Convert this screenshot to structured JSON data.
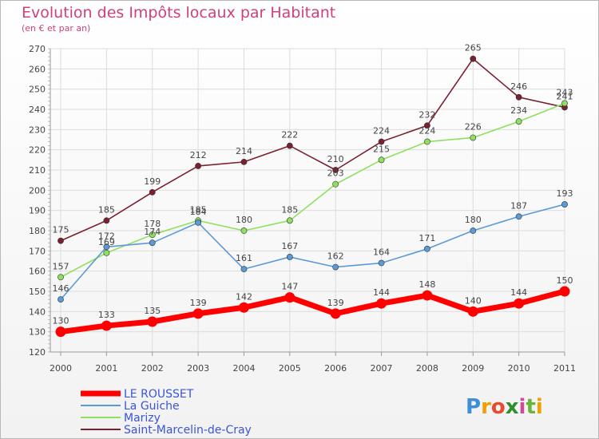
{
  "header": {
    "title": "Evolution des Impôts locaux par Habitant",
    "subtitle": "(en € et par an)"
  },
  "logo": {
    "text": "Proxiti",
    "letters": [
      "P",
      "r",
      "o",
      "x",
      "i",
      "t",
      "i"
    ],
    "colors": [
      "#3d8fd6",
      "#f0a000",
      "#e84b2f",
      "#2f8f2f",
      "#d04a9a",
      "#6bb43a",
      "#f0a000"
    ]
  },
  "chart_data": {
    "type": "line",
    "title": "Evolution des Impôts locaux par Habitant",
    "subtitle": "(en € et par an)",
    "xlabel": "",
    "ylabel": "",
    "ylim": [
      120,
      270
    ],
    "y_ticks": [
      120,
      130,
      140,
      150,
      160,
      170,
      180,
      190,
      200,
      210,
      220,
      230,
      240,
      250,
      260,
      270
    ],
    "x": [
      "2000",
      "2001",
      "2002",
      "2003",
      "2004",
      "2005",
      "2006",
      "2007",
      "2008",
      "2009",
      "2010",
      "2011"
    ],
    "series": [
      {
        "name": "LE ROUSSET",
        "color": "#ff0000",
        "values": [
          130,
          133,
          135,
          139,
          142,
          147,
          139,
          144,
          148,
          140,
          144,
          150
        ]
      },
      {
        "name": "La Guiche",
        "color": "#5b9bd5",
        "values": [
          146,
          172,
          174,
          184,
          161,
          167,
          162,
          164,
          171,
          180,
          187,
          193
        ]
      },
      {
        "name": "Marizy",
        "color": "#8fe060",
        "values": [
          157,
          169,
          178,
          185,
          180,
          185,
          203,
          215,
          224,
          226,
          234,
          243
        ]
      },
      {
        "name": "Saint-Marcelin-de-Cray",
        "color": "#7a2030",
        "values": [
          175,
          185,
          199,
          212,
          214,
          222,
          210,
          224,
          232,
          265,
          246,
          241
        ]
      }
    ]
  }
}
